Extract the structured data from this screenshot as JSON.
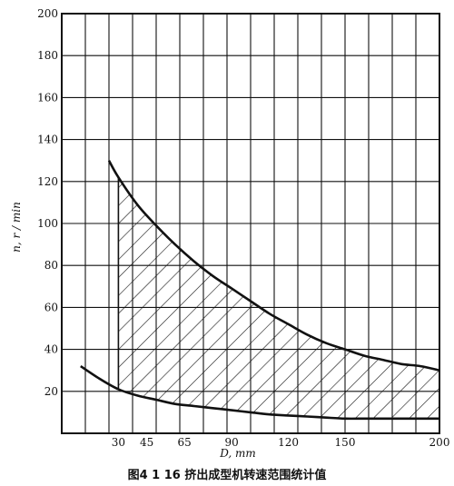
{
  "caption": "图4 1 16  挤出成型机转速范围统计值",
  "chart_data": {
    "type": "area",
    "title": "",
    "xlabel": "D, mm",
    "ylabel": "n, r / min",
    "xlim": [
      0,
      200
    ],
    "ylim": [
      0,
      200
    ],
    "xticks": [
      30,
      45,
      65,
      90,
      120,
      150,
      200
    ],
    "yticks": [
      20,
      40,
      60,
      80,
      100,
      120,
      140,
      160,
      180,
      200
    ],
    "grid": true,
    "hatched_region": {
      "x_start": 30,
      "x_end": 200
    },
    "series": [
      {
        "x": [
          25,
          30,
          40,
          50,
          60,
          70,
          80,
          90,
          100,
          110,
          120,
          130,
          140,
          150,
          160,
          170,
          180,
          190,
          200
        ],
        "y": [
          130,
          122,
          109,
          99,
          90,
          82,
          75,
          69,
          63,
          57,
          52,
          47,
          43,
          40,
          37,
          35,
          33,
          32,
          30
        ]
      },
      {
        "x": [
          10,
          20,
          30,
          40,
          50,
          60,
          70,
          80,
          90,
          100,
          110,
          120,
          130,
          140,
          150,
          160,
          170,
          180,
          190,
          200
        ],
        "y": [
          32,
          26,
          21,
          18,
          16,
          14,
          13,
          12,
          11,
          10,
          9,
          8.5,
          8,
          7.5,
          7,
          7,
          7,
          7,
          7,
          7
        ]
      }
    ]
  }
}
